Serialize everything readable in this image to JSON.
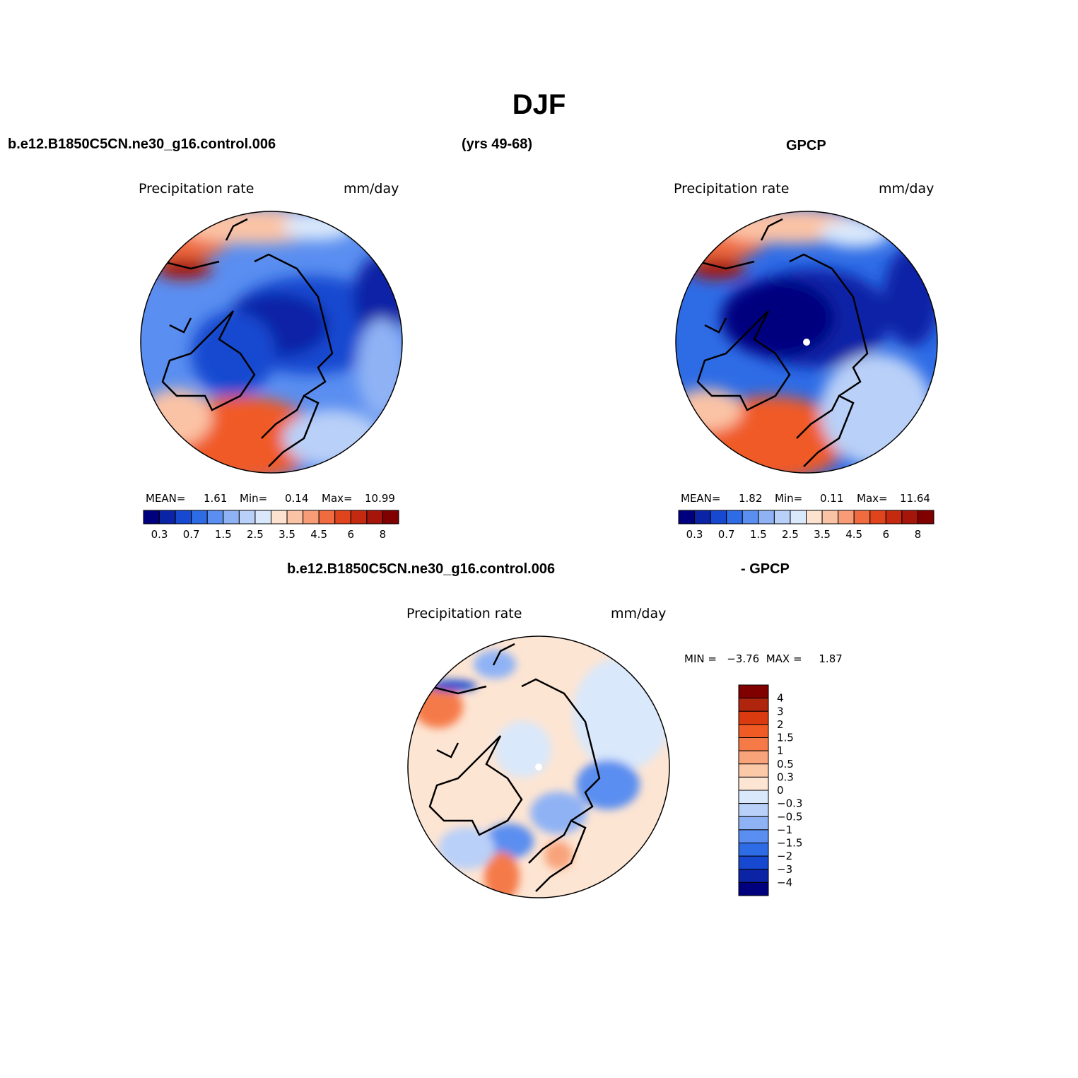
{
  "figure": {
    "title": "DJF",
    "left_case": "b.e12.B1850C5CN.ne30_g16.control.006",
    "years": "(yrs 49-68)",
    "right_case": "GPCP",
    "diff_case": "b.e12.B1850C5CN.ne30_g16.control.006",
    "diff_suffix": "- GPCP"
  },
  "panels": [
    {
      "variable": "Precipitation  rate",
      "units": "mm/day",
      "stats": {
        "mean_label": "MEAN=",
        "mean": "1.61",
        "min_label": "Min=",
        "min": "0.14",
        "max_label": "Max=",
        "max": "10.99"
      }
    },
    {
      "variable": "Precipitation  rate",
      "units": "mm/day",
      "stats": {
        "mean_label": "MEAN=",
        "mean": "1.82",
        "min_label": "Min=",
        "min": "0.11",
        "max_label": "Max=",
        "max": "11.64"
      }
    },
    {
      "variable": "Precipitation  rate",
      "units": "mm/day",
      "stats": {
        "text": "MIN =   −3.76  MAX =     1.87"
      }
    }
  ],
  "colorbar_abs": {
    "colors": [
      "#00007f",
      "#0b24a6",
      "#1648d0",
      "#2e6ce6",
      "#5a8ef0",
      "#8fb2f5",
      "#b9d0f8",
      "#d9e8fb",
      "#fde2cf",
      "#fbc3a5",
      "#f79c77",
      "#f06b40",
      "#e0441c",
      "#c42a10",
      "#a5150a",
      "#800000"
    ],
    "labels": [
      "0.3",
      "0.7",
      "1.5",
      "2.5",
      "3.5",
      "4.5",
      "6",
      "8"
    ]
  },
  "colorbar_diff": {
    "colors": [
      "#800000",
      "#b0250e",
      "#da3a10",
      "#f05a25",
      "#f57a48",
      "#f8a37a",
      "#fbc8a8",
      "#fde5d3",
      "#d9e8fb",
      "#b9d0f8",
      "#8fb2f5",
      "#5a8ef0",
      "#2e6ce6",
      "#1648d0",
      "#0b24a6",
      "#00007f"
    ],
    "labels": [
      "4",
      "3",
      "2",
      "1.5",
      "1",
      "0.5",
      "0.3",
      "0",
      "−0.3",
      "−0.5",
      "−1",
      "−1.5",
      "−2",
      "−3",
      "−4"
    ]
  }
}
